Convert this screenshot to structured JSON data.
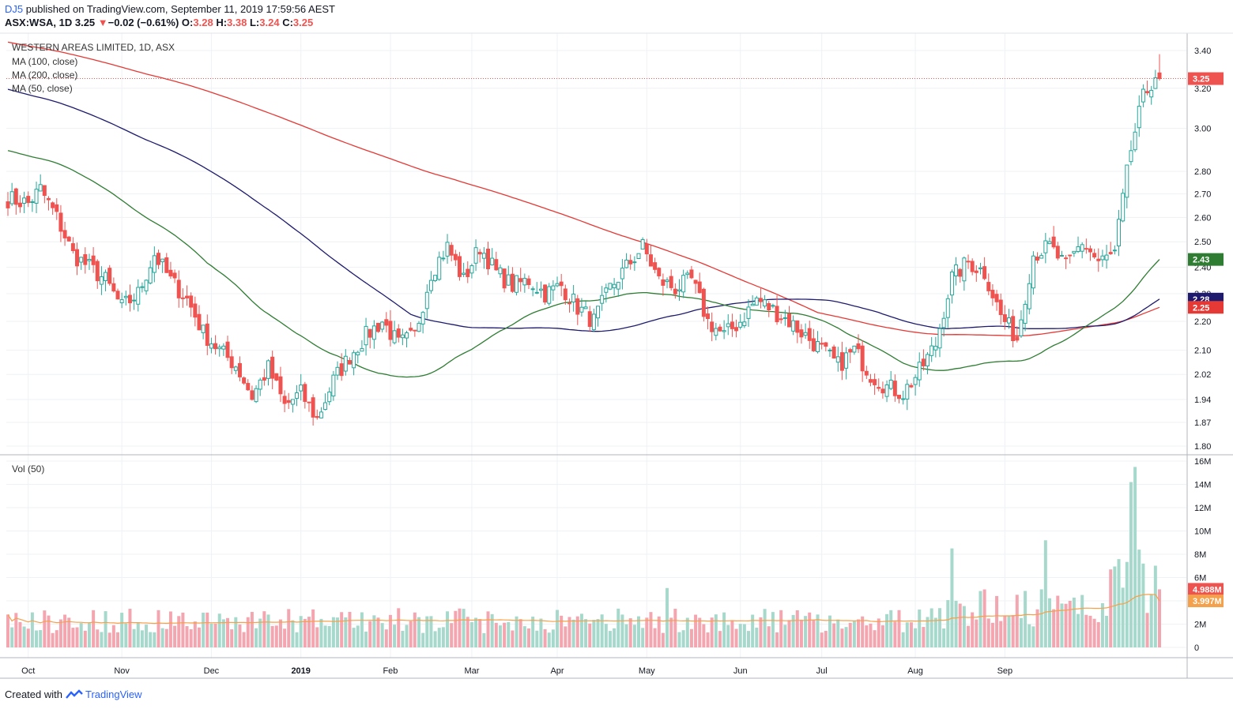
{
  "header": {
    "publisher": "DJ5",
    "published_text": "published on TradingView.com, September 11, 2019 17:59:56 AEST",
    "symbol": "ASX:WSA, 1D",
    "last": "3.25",
    "change_arrow": "▼",
    "change": "−0.02 (−0.61%)",
    "o_label": "O:",
    "o": "3.28",
    "h_label": "H:",
    "h": "3.38",
    "l_label": "L:",
    "l": "3.24",
    "c_label": "C:",
    "c": "3.25"
  },
  "legend": {
    "title": "WESTERN AREAS LIMITED, 1D, ASX",
    "ma100": "MA (100, close)",
    "ma200": "MA (200, close)",
    "ma50": "MA (50, close)",
    "vol": "Vol (50)"
  },
  "footer": {
    "created": "Created with",
    "brand": "TradingView"
  },
  "colors": {
    "up": "#26a69a",
    "down": "#ef5350",
    "up_vol": "#a6d9cc",
    "down_vol": "#f4a6b0",
    "ma50": "#2e7d32",
    "ma100": "#1e1b6e",
    "ma200": "#e53935",
    "vol_ma": "#f5a04a",
    "grid": "#eef1f5"
  },
  "chart_data": {
    "type": "candlestick",
    "price_scale": "log",
    "price_ticks": [
      "3.40",
      "3.20",
      "3.00",
      "2.80",
      "2.70",
      "2.60",
      "2.50",
      "2.40",
      "2.30",
      "2.20",
      "2.10",
      "2.02",
      "1.94",
      "1.87",
      "1.80"
    ],
    "volume_ticks": [
      "16M",
      "14M",
      "12M",
      "10M",
      "8M",
      "6M",
      "4M",
      "2M",
      "0"
    ],
    "month_labels": [
      {
        "label": "Oct",
        "date": "2018-10-01"
      },
      {
        "label": "Nov",
        "date": "2018-11-01"
      },
      {
        "label": "Dec",
        "date": "2018-12-03"
      },
      {
        "label": "2019",
        "date": "2019-01-02"
      },
      {
        "label": "Feb",
        "date": "2019-02-01"
      },
      {
        "label": "Mar",
        "date": "2019-03-01"
      },
      {
        "label": "Apr",
        "date": "2019-04-01"
      },
      {
        "label": "May",
        "date": "2019-05-01"
      },
      {
        "label": "Jun",
        "date": "2019-06-03"
      },
      {
        "label": "Jul",
        "date": "2019-07-01"
      },
      {
        "label": "Aug",
        "date": "2019-08-01"
      },
      {
        "label": "Sep",
        "date": "2019-09-02"
      }
    ],
    "last_values": {
      "price": "3.25",
      "ma50": "2.43",
      "ma100": "2.28",
      "ma200": "2.25",
      "volume": "4.988M",
      "vol_ma": "3.997M"
    },
    "close_anchors": [
      [
        0,
        2.68
      ],
      [
        5,
        2.66
      ],
      [
        8,
        2.72
      ],
      [
        12,
        2.6
      ],
      [
        16,
        2.45
      ],
      [
        20,
        2.4
      ],
      [
        24,
        2.35
      ],
      [
        28,
        2.25
      ],
      [
        32,
        2.3
      ],
      [
        36,
        2.45
      ],
      [
        40,
        2.35
      ],
      [
        44,
        2.28
      ],
      [
        48,
        2.16
      ],
      [
        52,
        2.1
      ],
      [
        56,
        2.05
      ],
      [
        60,
        1.95
      ],
      [
        64,
        2.04
      ],
      [
        68,
        1.92
      ],
      [
        72,
        1.96
      ],
      [
        76,
        1.88
      ],
      [
        80,
        2.0
      ],
      [
        84,
        2.08
      ],
      [
        88,
        2.15
      ],
      [
        92,
        2.2
      ],
      [
        96,
        2.12
      ],
      [
        100,
        2.15
      ],
      [
        104,
        2.38
      ],
      [
        108,
        2.48
      ],
      [
        112,
        2.35
      ],
      [
        116,
        2.48
      ],
      [
        120,
        2.38
      ],
      [
        124,
        2.33
      ],
      [
        128,
        2.35
      ],
      [
        132,
        2.3
      ],
      [
        136,
        2.33
      ],
      [
        140,
        2.25
      ],
      [
        144,
        2.2
      ],
      [
        148,
        2.32
      ],
      [
        152,
        2.4
      ],
      [
        156,
        2.48
      ],
      [
        160,
        2.35
      ],
      [
        164,
        2.32
      ],
      [
        168,
        2.35
      ],
      [
        172,
        2.2
      ],
      [
        176,
        2.15
      ],
      [
        180,
        2.2
      ],
      [
        184,
        2.28
      ],
      [
        188,
        2.24
      ],
      [
        192,
        2.2
      ],
      [
        196,
        2.15
      ],
      [
        200,
        2.1
      ],
      [
        204,
        2.05
      ],
      [
        208,
        2.1
      ],
      [
        212,
        2.02
      ],
      [
        216,
        1.98
      ],
      [
        220,
        1.96
      ],
      [
        224,
        2.03
      ],
      [
        228,
        2.12
      ],
      [
        232,
        2.36
      ],
      [
        236,
        2.42
      ],
      [
        240,
        2.38
      ],
      [
        244,
        2.22
      ],
      [
        248,
        2.14
      ],
      [
        252,
        2.45
      ],
      [
        256,
        2.48
      ],
      [
        260,
        2.4
      ],
      [
        264,
        2.5
      ],
      [
        268,
        2.42
      ],
      [
        272,
        2.45
      ],
      [
        276,
        2.9
      ],
      [
        279,
        3.15
      ],
      [
        282,
        3.27
      ],
      [
        283,
        3.25
      ]
    ]
  }
}
